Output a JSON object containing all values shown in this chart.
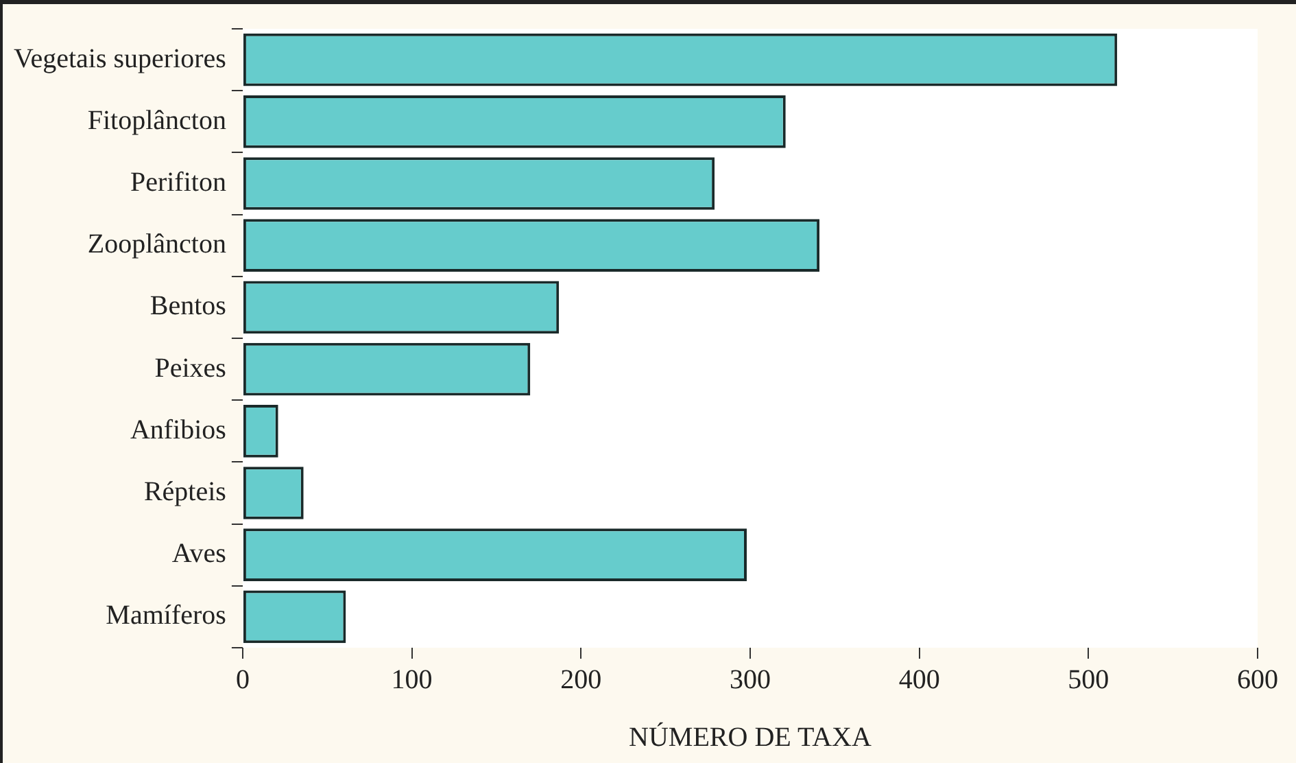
{
  "chart_data": {
    "type": "bar",
    "orientation": "horizontal",
    "xlabel": "NÚMERO DE TAXA",
    "categories": [
      "Vegetais superiores",
      "Fitoplâncton",
      "Perifiton",
      "Zooplâncton",
      "Bentos",
      "Peixes",
      "Anfibios",
      "Répteis",
      "Aves",
      "Mamíferos"
    ],
    "values": [
      517,
      321,
      279,
      341,
      187,
      170,
      21,
      36,
      298,
      61
    ],
    "color": "#66cccc",
    "xlim": [
      0,
      600
    ],
    "xticks": [
      0,
      100,
      200,
      300,
      400,
      500,
      600
    ],
    "grid": false,
    "legend": false
  }
}
